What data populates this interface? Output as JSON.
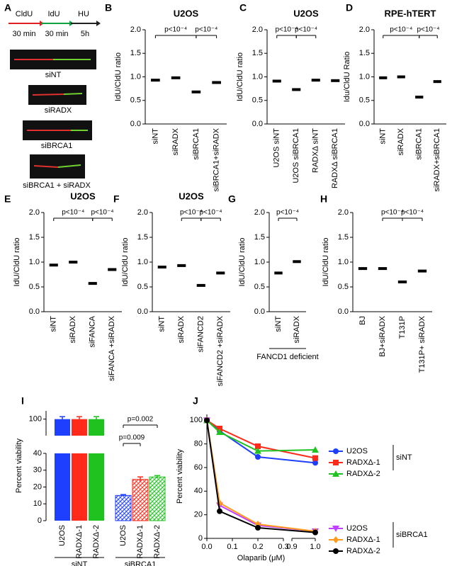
{
  "panel_a": {
    "label": "A",
    "steps": [
      "CldU",
      "IdU",
      "HU"
    ],
    "durations": [
      "30 min",
      "30 min",
      "5h"
    ],
    "fibers": [
      "siNT",
      "siRADX",
      "siBRCA1",
      "siBRCA1 + siRADX"
    ]
  },
  "chart_data": [
    {
      "type": "dot",
      "panel": "B",
      "title": "U2OS",
      "ylabel": "IdU/CldU ratio",
      "categories": [
        "siNT",
        "siRADX",
        "siBRCA1",
        "siBRCA1+siRADX"
      ],
      "values": [
        0.93,
        0.98,
        0.68,
        0.88
      ],
      "color": "#000000",
      "ylim": [
        0,
        2.0
      ],
      "yticks": [
        {
          "value": 0,
          "label": "0.0"
        },
        {
          "value": 0.5,
          "label": "0.5"
        },
        {
          "value": 1,
          "label": "1.0"
        },
        {
          "value": 1.5,
          "label": "1.5"
        },
        {
          "value": 2,
          "label": "2.0"
        }
      ],
      "annotations": [
        {
          "text": "p<10⁻⁴",
          "between": [
            0,
            2
          ]
        },
        {
          "text": "p<10⁻⁴",
          "between": [
            2,
            3
          ]
        }
      ]
    },
    {
      "type": "dot",
      "panel": "C",
      "title": "U2OS",
      "ylabel": "IdU/CldU ratio",
      "categories": [
        "U2OS siNT",
        "U2OS siBRCA1",
        "RADXΔ siNT",
        "RADXΔ siBRCA1"
      ],
      "values": [
        0.91,
        0.73,
        0.93,
        0.92
      ],
      "color": "#000000",
      "ylim": [
        0,
        2.0
      ],
      "yticks": [
        {
          "value": 0,
          "label": "0.0"
        },
        {
          "value": 0.5,
          "label": "0.5"
        },
        {
          "value": 1,
          "label": "1.0"
        },
        {
          "value": 1.5,
          "label": "1.5"
        },
        {
          "value": 2,
          "label": "2.0"
        }
      ],
      "annotations": [
        {
          "text": "p<10⁻⁴",
          "between": [
            0,
            1
          ]
        },
        {
          "text": "p<10⁻⁴",
          "between": [
            1,
            2
          ]
        }
      ]
    },
    {
      "type": "dot",
      "panel": "D",
      "title": "RPE-hTERT",
      "ylabel": "Idu/CldU Ratio",
      "categories": [
        "siNT",
        "siRADX",
        "siBRCA1",
        "siRADX+siBRCA1"
      ],
      "values": [
        0.98,
        1.0,
        0.57,
        0.9
      ],
      "color": "#000000",
      "ylim": [
        0,
        2.0
      ],
      "yticks": [
        {
          "value": 0,
          "label": "0.0"
        },
        {
          "value": 0.5,
          "label": "0.5"
        },
        {
          "value": 1,
          "label": "1.0"
        },
        {
          "value": 1.5,
          "label": "1.5"
        },
        {
          "value": 2,
          "label": "2.0"
        }
      ],
      "annotations": [
        {
          "text": "p<10⁻⁴",
          "between": [
            0,
            2
          ]
        },
        {
          "text": "p<10⁻⁴",
          "between": [
            2,
            3
          ]
        }
      ]
    },
    {
      "type": "dot",
      "panel": "E",
      "title": "U2OS",
      "ylabel": "IdU/CldU ratio",
      "categories": [
        "siNT",
        "siRADX",
        "siFANCA",
        "siFANCA +siRADX"
      ],
      "values": [
        0.94,
        1.0,
        0.57,
        0.85
      ],
      "color": "#000000",
      "ylim": [
        0,
        2.0
      ],
      "yticks": [
        {
          "value": 0,
          "label": "0.0"
        },
        {
          "value": 0.5,
          "label": "0.5"
        },
        {
          "value": 1,
          "label": "1.0"
        },
        {
          "value": 1.5,
          "label": "1.5"
        },
        {
          "value": 2,
          "label": "2.0"
        }
      ],
      "annotations": [
        {
          "text": "p<10⁻⁴",
          "between": [
            0,
            2
          ]
        },
        {
          "text": "p<10⁻⁴",
          "between": [
            2,
            3
          ]
        }
      ]
    },
    {
      "type": "dot",
      "panel": "F",
      "title": "U2OS",
      "ylabel": "IdU/CldU ratio",
      "categories": [
        "siNT",
        "siRADX",
        "siFANCD2",
        "siFANCD2 +siRADX"
      ],
      "values": [
        0.9,
        0.93,
        0.53,
        0.78
      ],
      "color": "#000000",
      "ylim": [
        0,
        2.0
      ],
      "yticks": [
        {
          "value": 0,
          "label": "0.0"
        },
        {
          "value": 0.5,
          "label": "0.5"
        },
        {
          "value": 1,
          "label": "1.0"
        },
        {
          "value": 1.5,
          "label": "1.5"
        },
        {
          "value": 2,
          "label": "2.0"
        }
      ],
      "annotations": [
        {
          "text": "p<10⁻⁴",
          "between": [
            1,
            2
          ]
        },
        {
          "text": "p<10⁻⁴",
          "between": [
            2,
            3
          ]
        }
      ]
    },
    {
      "type": "dot",
      "panel": "G",
      "ylabel": "IdU/CldU ratio",
      "xlabel": "FANCD1 deficient",
      "categories": [
        "siNT",
        "siRADX"
      ],
      "values": [
        0.78,
        1.01
      ],
      "color": "#000000",
      "ylim": [
        0,
        2.0
      ],
      "yticks": [
        {
          "value": 0,
          "label": "0.0"
        },
        {
          "value": 0.5,
          "label": "0.5"
        },
        {
          "value": 1,
          "label": "1.0"
        },
        {
          "value": 1.5,
          "label": "1.5"
        },
        {
          "value": 2,
          "label": "2.0"
        }
      ],
      "annotations": [
        {
          "text": "p<10⁻⁴",
          "between": [
            0,
            1
          ]
        }
      ]
    },
    {
      "type": "dot",
      "panel": "H",
      "ylabel": "IdU/CldU ratio",
      "categories": [
        "BJ",
        "BJ+siRADX",
        "T131P",
        "T131P+ siRADX"
      ],
      "values": [
        0.87,
        0.87,
        0.6,
        0.82
      ],
      "color": "#000000",
      "ylim": [
        0,
        2.0
      ],
      "yticks": [
        {
          "value": 0,
          "label": "0.0"
        },
        {
          "value": 0.5,
          "label": "0.5"
        },
        {
          "value": 1,
          "label": "1.0"
        },
        {
          "value": 1.5,
          "label": "1.5"
        },
        {
          "value": 2,
          "label": "2.0"
        }
      ],
      "annotations": [
        {
          "text": "p<10⁻⁴",
          "between": [
            1,
            2
          ]
        },
        {
          "text": "p<10⁻⁴",
          "between": [
            2,
            3
          ]
        }
      ]
    },
    {
      "type": "bar",
      "panel": "I",
      "ylabel": "Percent viability",
      "categories": [
        "U2OS",
        "RADXΔ-1",
        "RADXΔ-2",
        "U2OS",
        "RADXΔ-1",
        "RADXΔ-2"
      ],
      "groups": [
        "siNT",
        "siBRCA1"
      ],
      "values": [
        100,
        100,
        100,
        15,
        24.5,
        26
      ],
      "errors": [
        1.5,
        1.5,
        1.5,
        0.5,
        1.5,
        0.8
      ],
      "colors": [
        "#1f3fff",
        "#ff2a1a",
        "#1fc21f",
        "#1f3fff",
        "#ff2a1a",
        "#1fc21f"
      ],
      "hatched": [
        false,
        false,
        false,
        true,
        true,
        true
      ],
      "ylim": [
        0,
        105
      ],
      "ybreak": [
        40,
        90
      ],
      "yticks": [
        0,
        10,
        20,
        30,
        40,
        100
      ],
      "annotations": [
        {
          "text": "p=0.009",
          "between": [
            3,
            4
          ]
        },
        {
          "text": "p=0.002",
          "between": [
            3,
            5
          ]
        }
      ]
    },
    {
      "type": "line",
      "panel": "J",
      "ylabel": "Percent viability",
      "xlabel": "Olaparib (μM)",
      "x": [
        0,
        0.05,
        0.2,
        1.0
      ],
      "xlim": [
        0,
        1.0
      ],
      "xbreak": [
        0.3,
        0.9
      ],
      "xticks": [
        {
          "value": 0,
          "label": "0.0"
        },
        0.1,
        0.2,
        0.3,
        0.9,
        {
          "value": 1,
          "label": "1.0"
        }
      ],
      "ylim": [
        0,
        105
      ],
      "yticks": [
        0,
        20,
        40,
        60,
        80,
        100
      ],
      "legend_groups": [
        "siNT",
        "siBRCA1"
      ],
      "series": [
        {
          "name": "U2OS",
          "group": 0,
          "color": "#1f3fff",
          "marker": "circle",
          "values": [
            100,
            91,
            69,
            64
          ]
        },
        {
          "name": "RADXΔ-1",
          "group": 0,
          "color": "#ff2a1a",
          "marker": "square",
          "values": [
            100,
            93,
            78,
            68
          ]
        },
        {
          "name": "RADXΔ-2",
          "group": 0,
          "color": "#1fc21f",
          "marker": "triangle",
          "values": [
            100,
            90,
            74,
            75
          ]
        },
        {
          "name": "U2OS",
          "group": 1,
          "color": "#c040ff",
          "marker": "triangle-down",
          "values": [
            100,
            28,
            11,
            6
          ]
        },
        {
          "name": "RADXΔ-1",
          "group": 1,
          "color": "#ff9a1a",
          "marker": "diamond",
          "values": [
            100,
            30,
            12,
            6
          ]
        },
        {
          "name": "RADXΔ-2",
          "group": 1,
          "color": "#000000",
          "marker": "circle",
          "values": [
            100,
            23,
            9,
            5
          ]
        }
      ]
    }
  ]
}
